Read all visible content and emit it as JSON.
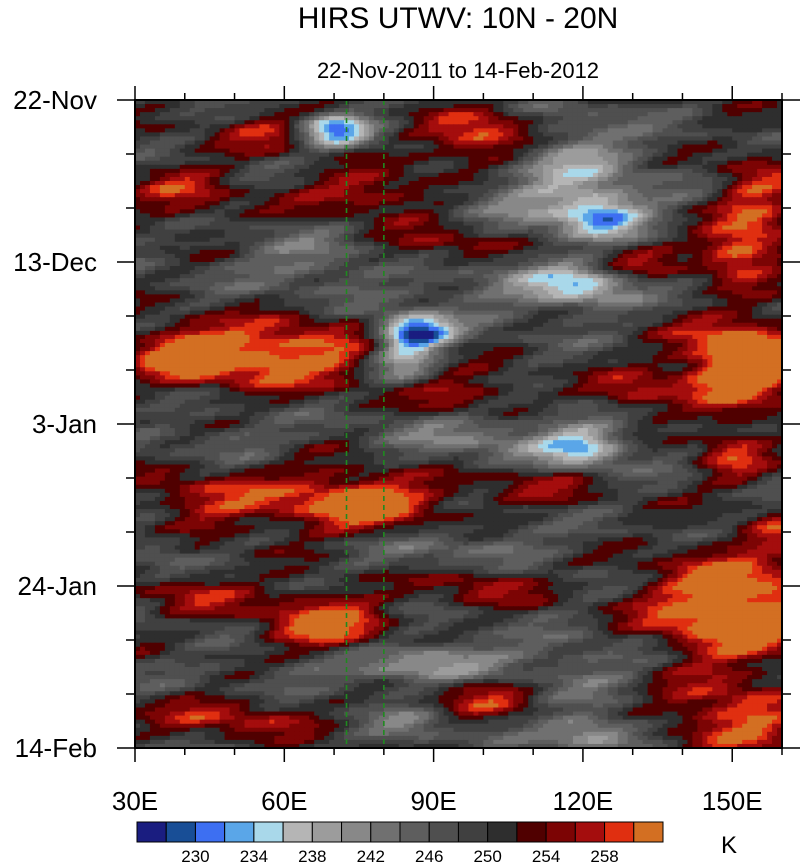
{
  "chart_data": {
    "type": "heatmap",
    "title": "HIRS UTWV: 10N - 20N",
    "subtitle": "22-Nov-2011 to 14-Feb-2012",
    "xlabel": "",
    "ylabel": "",
    "xlim": [
      30,
      160
    ],
    "ylim_days": [
      0,
      84
    ],
    "x_ticks": [
      {
        "value": 30,
        "label": "30E"
      },
      {
        "value": 60,
        "label": "60E"
      },
      {
        "value": 90,
        "label": "90E"
      },
      {
        "value": 120,
        "label": "120E"
      },
      {
        "value": 150,
        "label": "150E"
      }
    ],
    "y_ticks": [
      {
        "value": 0,
        "label": "22-Nov"
      },
      {
        "value": 21,
        "label": "13-Dec"
      },
      {
        "value": 42,
        "label": "3-Jan"
      },
      {
        "value": 63,
        "label": "24-Jan"
      },
      {
        "value": 84,
        "label": "14-Feb"
      }
    ],
    "reference_lines_lon": [
      72.5,
      80
    ],
    "colorbar": {
      "unit_label": "K",
      "levels": [
        228,
        230,
        232,
        234,
        236,
        238,
        240,
        242,
        244,
        246,
        248,
        250,
        252,
        254,
        256,
        258,
        260
      ],
      "label_values": [
        "230",
        "234",
        "238",
        "242",
        "246",
        "250",
        "254",
        "258"
      ],
      "colors": [
        "#1a1d80",
        "#184e96",
        "#3d6ff2",
        "#5aa6e8",
        "#a9d8ea",
        "#b5b5b5",
        "#9c9c9c",
        "#888888",
        "#707070",
        "#5e5e5e",
        "#4f4f4f",
        "#404040",
        "#2e2e2e",
        "#500000",
        "#7c0404",
        "#a40d0d",
        "#e02f10",
        "#d36f22"
      ]
    },
    "features": [
      {
        "lon": 70,
        "day": 4,
        "sx": 5,
        "sy": 1.5,
        "amp": -18
      },
      {
        "lon": 57,
        "day": 4,
        "sx": 8,
        "sy": 2,
        "amp": 7
      },
      {
        "lon": 100,
        "day": 5,
        "sx": 8,
        "sy": 2.5,
        "amp": 13
      },
      {
        "lon": 118,
        "day": 6,
        "sx": 9,
        "sy": 3,
        "amp": -6
      },
      {
        "lon": 124,
        "day": 15,
        "sx": 6,
        "sy": 2,
        "amp": -14
      },
      {
        "lon": 115,
        "day": 12,
        "sx": 12,
        "sy": 4,
        "amp": -8
      },
      {
        "lon": 77,
        "day": 12,
        "sx": 10,
        "sy": 2,
        "amp": 9
      },
      {
        "lon": 40,
        "day": 12,
        "sx": 8,
        "sy": 3,
        "amp": 7
      },
      {
        "lon": 155,
        "day": 14,
        "sx": 6,
        "sy": 5,
        "amp": 10
      },
      {
        "lon": 150,
        "day": 20,
        "sx": 5,
        "sy": 2,
        "amp": 10
      },
      {
        "lon": 65,
        "day": 21,
        "sx": 10,
        "sy": 2.5,
        "amp": -6
      },
      {
        "lon": 120,
        "day": 24,
        "sx": 7,
        "sy": 2,
        "amp": -12
      },
      {
        "lon": 105,
        "day": 24,
        "sx": 15,
        "sy": 2.5,
        "amp": -5
      },
      {
        "lon": 92,
        "day": 19,
        "sx": 10,
        "sy": 2,
        "amp": 7
      },
      {
        "lon": 130,
        "day": 21,
        "sx": 8,
        "sy": 2,
        "amp": 6
      },
      {
        "lon": 87,
        "day": 30,
        "sx": 5,
        "sy": 1.5,
        "amp": -18
      },
      {
        "lon": 84,
        "day": 33,
        "sx": 5,
        "sy": 3,
        "amp": -12
      },
      {
        "lon": 60,
        "day": 33,
        "sx": 14,
        "sy": 3,
        "amp": 14
      },
      {
        "lon": 40,
        "day": 33,
        "sx": 7,
        "sy": 2.5,
        "amp": 13
      },
      {
        "lon": 152,
        "day": 34,
        "sx": 9,
        "sy": 4,
        "amp": 18
      },
      {
        "lon": 130,
        "day": 38,
        "sx": 6,
        "sy": 2,
        "amp": 8
      },
      {
        "lon": 95,
        "day": 38,
        "sx": 10,
        "sy": 2,
        "amp": 8
      },
      {
        "lon": 120,
        "day": 45,
        "sx": 6,
        "sy": 2,
        "amp": -13
      },
      {
        "lon": 100,
        "day": 44,
        "sx": 15,
        "sy": 3,
        "amp": -6
      },
      {
        "lon": 48,
        "day": 44,
        "sx": 8,
        "sy": 2,
        "amp": -3
      },
      {
        "lon": 150,
        "day": 46,
        "sx": 5,
        "sy": 3,
        "amp": 8
      },
      {
        "lon": 75,
        "day": 52,
        "sx": 12,
        "sy": 3,
        "amp": 14
      },
      {
        "lon": 45,
        "day": 52,
        "sx": 10,
        "sy": 3,
        "amp": 8
      },
      {
        "lon": 110,
        "day": 50,
        "sx": 10,
        "sy": 2,
        "amp": 6
      },
      {
        "lon": 160,
        "day": 56,
        "sx": 5,
        "sy": 2,
        "amp": 6
      },
      {
        "lon": 35,
        "day": 58,
        "sx": 5,
        "sy": 2,
        "amp": -4
      },
      {
        "lon": 95,
        "day": 58,
        "sx": 14,
        "sy": 2,
        "amp": -5
      },
      {
        "lon": 150,
        "day": 66,
        "sx": 12,
        "sy": 5,
        "amp": 17
      },
      {
        "lon": 68,
        "day": 68,
        "sx": 9,
        "sy": 3,
        "amp": 13
      },
      {
        "lon": 42,
        "day": 64,
        "sx": 8,
        "sy": 2,
        "amp": 7
      },
      {
        "lon": 100,
        "day": 63,
        "sx": 8,
        "sy": 2,
        "amp": 7
      },
      {
        "lon": 90,
        "day": 73,
        "sx": 10,
        "sy": 2,
        "amp": -10
      },
      {
        "lon": 120,
        "day": 74,
        "sx": 12,
        "sy": 3,
        "amp": -5
      },
      {
        "lon": 65,
        "day": 74,
        "sx": 10,
        "sy": 2.5,
        "amp": -4
      },
      {
        "lon": 100,
        "day": 77,
        "sx": 8,
        "sy": 2,
        "amp": 9
      },
      {
        "lon": 145,
        "day": 79,
        "sx": 10,
        "sy": 3,
        "amp": 7
      },
      {
        "lon": 50,
        "day": 80,
        "sx": 12,
        "sy": 2,
        "amp": 8
      },
      {
        "lon": 122,
        "day": 82,
        "sx": 7,
        "sy": 1.5,
        "amp": -12
      },
      {
        "lon": 85,
        "day": 81,
        "sx": 6,
        "sy": 2,
        "amp": -5
      },
      {
        "lon": 155,
        "day": 82,
        "sx": 7,
        "sy": 3,
        "amp": 8
      }
    ]
  }
}
